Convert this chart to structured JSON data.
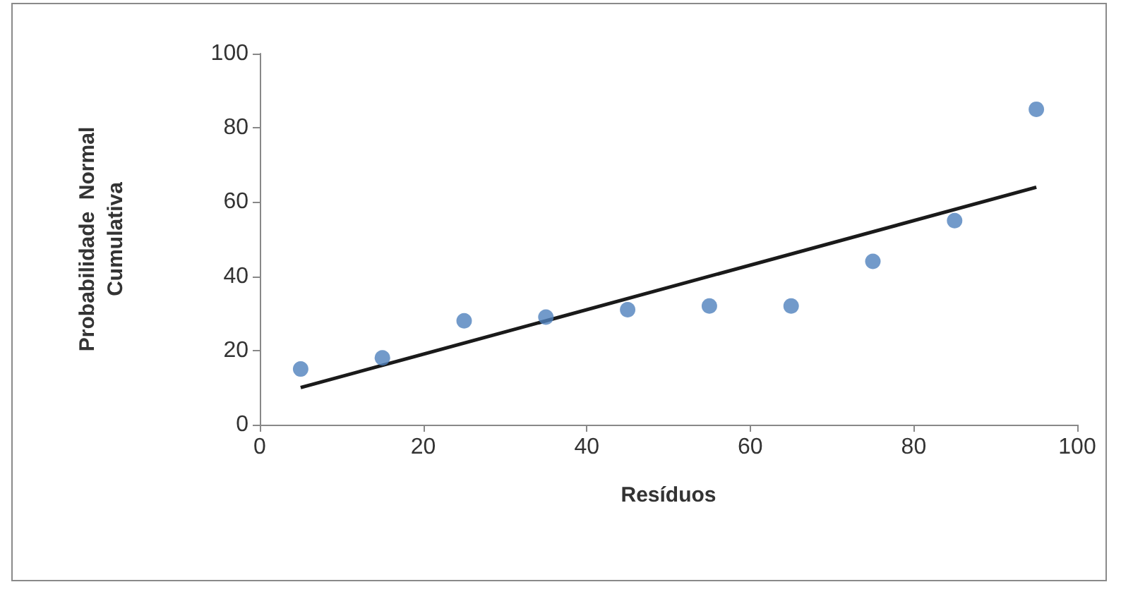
{
  "chart_data": {
    "type": "scatter",
    "xlabel": "Resíduos",
    "ylabel": "Probabilidade  Normal\nCumulativa",
    "x": [
      5,
      15,
      25,
      35,
      45,
      55,
      65,
      75,
      85,
      95
    ],
    "series": [
      {
        "color": "#4f81bd",
        "marker": "circle",
        "values": [
          15,
          18,
          28,
          29,
          31,
          32,
          32,
          44,
          55,
          85
        ]
      },
      {
        "type": "line",
        "color": "#1a1a1a",
        "marker": "none",
        "line_style": "solid",
        "x": [
          5,
          95
        ],
        "values": [
          10,
          64
        ]
      }
    ],
    "xlim": [
      0,
      100
    ],
    "xticks": [
      0,
      20,
      40,
      60,
      80,
      100
    ],
    "ylim": [
      0,
      100
    ],
    "yticks": [
      0,
      20,
      40,
      60,
      80,
      100
    ],
    "grid": false
  }
}
